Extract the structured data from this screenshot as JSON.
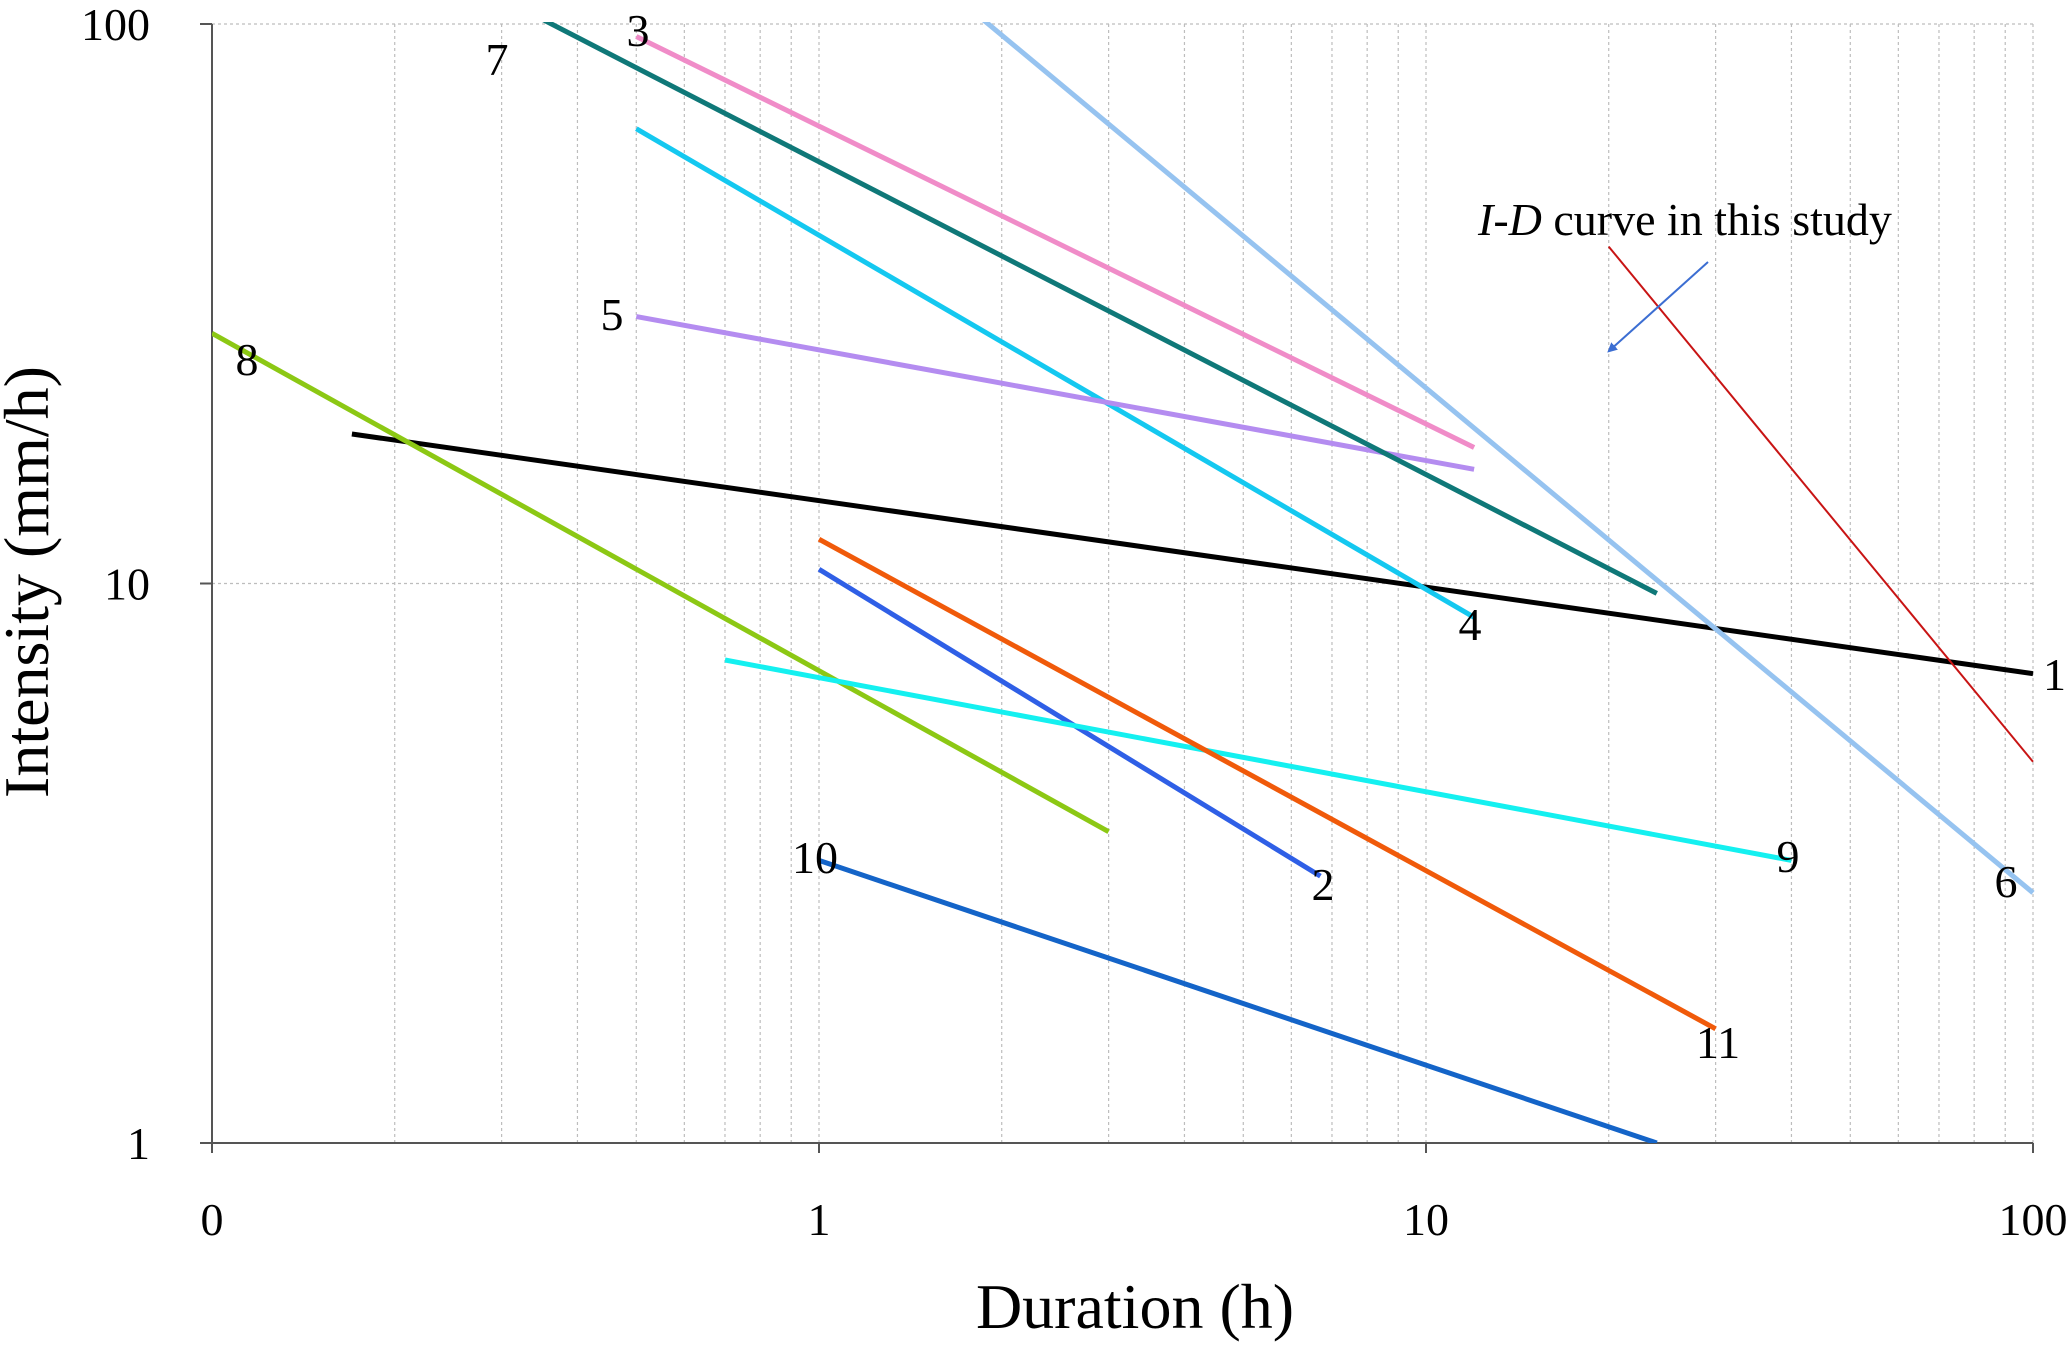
{
  "chart_data": {
    "type": "line",
    "xscale": "log",
    "yscale": "log",
    "xlim": [
      0.1,
      100
    ],
    "ylim": [
      1,
      100
    ],
    "xlabel": "Duration (h)",
    "ylabel": "Intensity (mm/h)",
    "x_tick_labels": [
      {
        "value": 0.1,
        "label": "0"
      },
      {
        "value": 1,
        "label": "1"
      },
      {
        "value": 10,
        "label": "10"
      },
      {
        "value": 100,
        "label": "100"
      }
    ],
    "y_tick_labels": [
      {
        "value": 1,
        "label": "1"
      },
      {
        "value": 10,
        "label": "10"
      },
      {
        "value": 100,
        "label": "100"
      }
    ],
    "series": [
      {
        "name": "1",
        "color": "#000000",
        "x": [
          0.17,
          100
        ],
        "y": [
          18.5,
          6.9
        ]
      },
      {
        "name": "2",
        "color": "#2f5fe6",
        "x": [
          1,
          6.7
        ],
        "y": [
          10.6,
          3.0
        ]
      },
      {
        "name": "3",
        "color": "#f08cc8",
        "x": [
          0.5,
          12
        ],
        "y": [
          95,
          17.5
        ]
      },
      {
        "name": "4",
        "color": "#14c8f0",
        "x": [
          0.5,
          12
        ],
        "y": [
          65,
          8.7
        ]
      },
      {
        "name": "5",
        "color": "#b48cf0",
        "x": [
          0.5,
          12
        ],
        "y": [
          30,
          16
        ]
      },
      {
        "name": "6",
        "color": "#96c3f0",
        "x": [
          1.8,
          100
        ],
        "y": [
          105,
          2.8
        ]
      },
      {
        "name": "7",
        "color": "#0f7878",
        "x": [
          0.35,
          24
        ],
        "y": [
          102,
          9.6
        ]
      },
      {
        "name": "8",
        "color": "#8cc814",
        "x": [
          0.1,
          3
        ],
        "y": [
          28,
          3.6
        ]
      },
      {
        "name": "9",
        "color": "#14f0f0",
        "x": [
          0.7,
          40
        ],
        "y": [
          7.3,
          3.2
        ]
      },
      {
        "name": "10",
        "color": "#1464c8",
        "x": [
          1,
          24
        ],
        "y": [
          3.2,
          1.0
        ]
      },
      {
        "name": "11",
        "color": "#f05a0a",
        "x": [
          1,
          30
        ],
        "y": [
          12,
          1.6
        ]
      },
      {
        "name": "I-D curve in this study",
        "color": "#c81414",
        "x": [
          20,
          100
        ],
        "y": [
          40,
          4.8
        ]
      }
    ],
    "annotation": {
      "text_italic": "I-D",
      "text_rest": " curve in this study",
      "arrow_target": {
        "x": 20,
        "y": 26
      },
      "arrow_color": "#3c6ed2"
    }
  }
}
